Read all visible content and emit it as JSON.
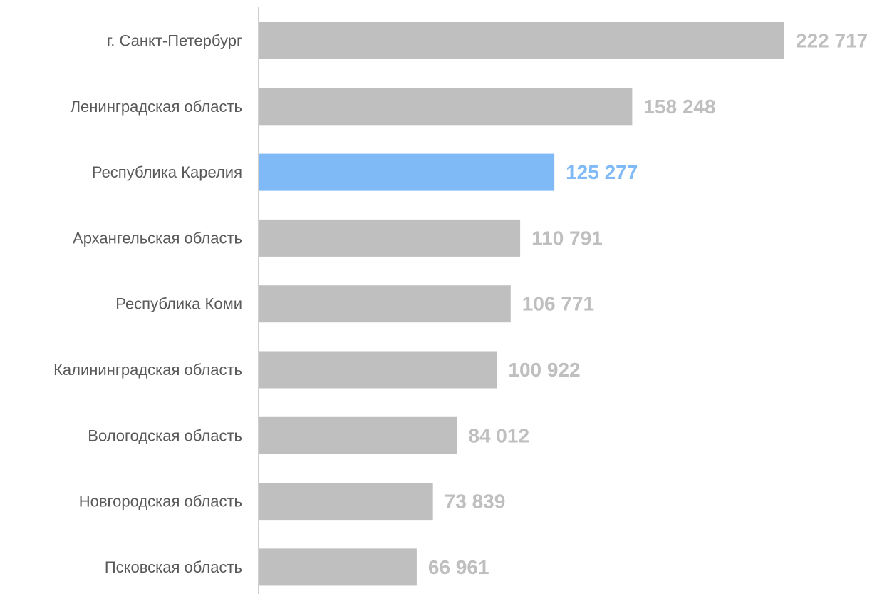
{
  "chart_data": {
    "type": "bar",
    "orientation": "horizontal",
    "categories": [
      "г. Санкт-Петербург",
      "Ленинградская область",
      "Республика Карелия",
      "Архангельская область",
      "Республика Коми",
      "Калининградская область",
      "Вологодская область",
      "Новгородская область",
      "Псковская область"
    ],
    "values": [
      222717,
      158248,
      125277,
      110791,
      106771,
      100922,
      84012,
      73839,
      66961
    ],
    "value_labels": [
      "222 717",
      "158 248",
      "125 277",
      "110 791",
      "106 771",
      "100 922",
      "84 012",
      "73 839",
      "66 961"
    ],
    "highlight_index": 2,
    "xlim": [
      0,
      222717
    ],
    "grid": false,
    "legend": "none"
  },
  "colors": {
    "bar": "#bfbfbf",
    "bar_highlight": "#7fbaf7",
    "label_value": "#bfbfbf",
    "label_value_highlight": "#7fbaf7",
    "label_category": "#595959",
    "axis": "#bfbfbf"
  }
}
